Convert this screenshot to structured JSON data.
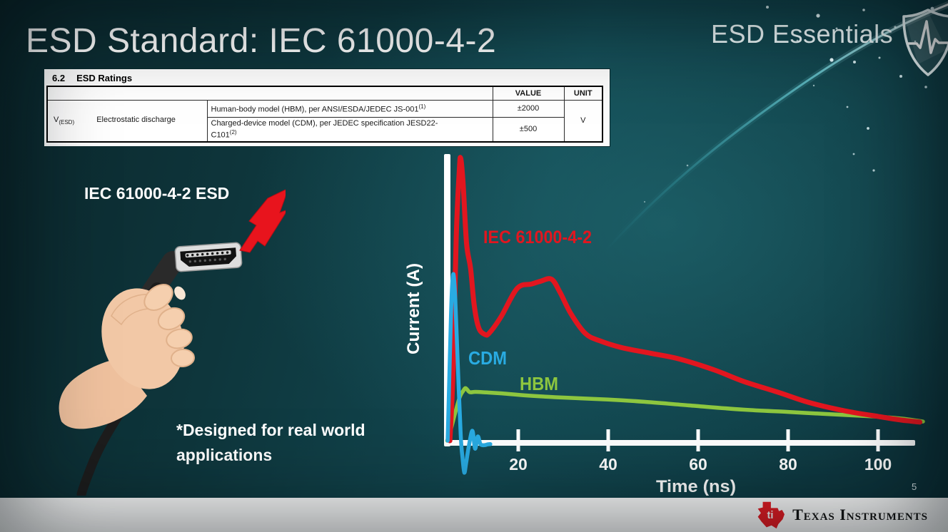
{
  "slide": {
    "title": "ESD Standard: IEC 61000-4-2",
    "series_brand": "ESD Essentials",
    "page_number": "5",
    "footer_logo_text": "Texas Instruments",
    "footer_logo_monogram": "ti"
  },
  "colors": {
    "background_teal": "#11454c",
    "iec_red": "#e2161f",
    "cdm_blue": "#29abe2",
    "hbm_green": "#8dc63f",
    "axis_white": "#ffffff",
    "ti_red": "#e81c24",
    "bolt_red": "#e8141d"
  },
  "ratings_table": {
    "section": "6.2",
    "heading": "ESD Ratings",
    "value_header": "VALUE",
    "unit_header": "UNIT",
    "row_symbol": "V",
    "row_symbol_sub": "(ESD)",
    "row_label": "Electrostatic discharge",
    "rows": [
      {
        "description": "Human-body model (HBM), per ANSI/ESDA/JEDEC JS-001",
        "description_sup": "(1)",
        "value": "±2000"
      },
      {
        "description_line1": "Charged-device model (CDM), per JEDEC specification JESD22-",
        "description_line2": "C101",
        "description_sup": "(2)",
        "value": "±500"
      }
    ],
    "unit": "V"
  },
  "illustration": {
    "caption": "IEC 61000-4-2 ESD",
    "note_line1": "*Designed for real world",
    "note_line2": "applications",
    "icons": [
      "lightning-bolt",
      "hand-holding-hdmi-connector",
      "esd-shield"
    ]
  },
  "chart_data": {
    "type": "line",
    "title": "",
    "xlabel": "Time (ns)",
    "ylabel": "Current (A)",
    "x_tick_values": [
      20,
      40,
      60,
      80,
      100
    ],
    "x_tick_labels": [
      "20",
      "40",
      "60",
      "80",
      "100"
    ],
    "xlim": [
      0,
      110
    ],
    "ylim": [
      -0.15,
      1.05
    ],
    "y_units": "relative current (y axis unlabeled in figure)",
    "grid": false,
    "legend_position": "labels drawn next to curves",
    "series": [
      {
        "name": "IEC 61000-4-2",
        "color": "#e2161f",
        "x": [
          4.8,
          5.5,
          6.2,
          6.9,
          7.2,
          7.7,
          8.5,
          9.4,
          10.2,
          11.2,
          12.6,
          13.6,
          16.2,
          19.8,
          23.0,
          25.0,
          27.4,
          29.3,
          31.7,
          34.9,
          38.1,
          42.9,
          49.3,
          55.7,
          63.7,
          70.1,
          78.1,
          84.5,
          92.5,
          100.0,
          105.3,
          109.3
        ],
        "y": [
          0.0,
          0.25,
          0.72,
          0.96,
          1.0,
          0.92,
          0.7,
          0.61,
          0.48,
          0.4,
          0.376,
          0.382,
          0.44,
          0.54,
          0.555,
          0.565,
          0.572,
          0.525,
          0.45,
          0.38,
          0.354,
          0.33,
          0.31,
          0.29,
          0.25,
          0.21,
          0.17,
          0.136,
          0.106,
          0.086,
          0.073,
          0.066
        ]
      },
      {
        "name": "CDM",
        "color": "#29abe2",
        "x": [
          4.3,
          4.8,
          5.2,
          5.6,
          6.0,
          6.6,
          7.2,
          7.6,
          8.0,
          8.4,
          9.0,
          9.8,
          10.4,
          11.0,
          11.6,
          12.4,
          13.2,
          13.8
        ],
        "y": [
          0.0,
          0.3,
          0.52,
          0.59,
          0.5,
          0.25,
          0.02,
          -0.06,
          -0.113,
          -0.08,
          -0.02,
          0.035,
          -0.028,
          0.015,
          -0.012,
          -0.016,
          -0.013,
          -0.012
        ]
      },
      {
        "name": "HBM",
        "color": "#8dc63f",
        "x": [
          4.2,
          5.0,
          6.0,
          7.0,
          7.7,
          8.3,
          9.2,
          10.5,
          13.0,
          16.0,
          22.0,
          31.0,
          40.0,
          48.0,
          58.0,
          70.0,
          80.0,
          88.0,
          100.0,
          106.0,
          110.0
        ],
        "y": [
          0.0,
          0.04,
          0.1,
          0.155,
          0.175,
          0.186,
          0.172,
          0.173,
          0.171,
          0.168,
          0.16,
          0.152,
          0.146,
          0.138,
          0.125,
          0.11,
          0.102,
          0.095,
          0.085,
          0.077,
          0.068
        ]
      }
    ]
  }
}
